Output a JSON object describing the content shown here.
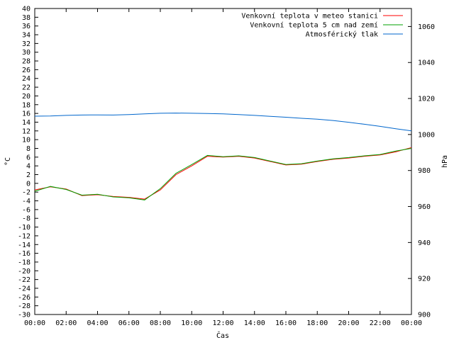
{
  "chart_data": {
    "type": "line",
    "xlabel": "Čas",
    "ylabel_left": "°C",
    "ylabel_right": "hPa",
    "x_ticks": [
      "00:00",
      "02:00",
      "04:00",
      "06:00",
      "08:00",
      "10:00",
      "12:00",
      "14:00",
      "16:00",
      "18:00",
      "20:00",
      "22:00",
      "00:00"
    ],
    "x_hours": [
      0,
      1,
      2,
      3,
      4,
      5,
      6,
      7,
      8,
      9,
      10,
      11,
      12,
      13,
      14,
      15,
      16,
      17,
      18,
      19,
      20,
      21,
      22,
      23,
      24
    ],
    "ylim_left": [
      -30,
      40
    ],
    "y_ticks_left": [
      -30,
      -28,
      -26,
      -24,
      -22,
      -20,
      -18,
      -16,
      -14,
      -12,
      -10,
      -8,
      -6,
      -4,
      -2,
      0,
      2,
      4,
      6,
      8,
      10,
      12,
      14,
      16,
      18,
      20,
      22,
      24,
      26,
      28,
      30,
      32,
      34,
      36,
      38,
      40
    ],
    "ylim_right": [
      900,
      1070
    ],
    "y_ticks_right": [
      900,
      920,
      940,
      960,
      980,
      1000,
      1020,
      1040,
      1060
    ],
    "grid": false,
    "legend_position": "top-right",
    "series": [
      {
        "name": "Venkovní teplota v meteo stanici",
        "color": "#ff0000",
        "axis": "left",
        "values": [
          -1.5,
          -0.8,
          -1.3,
          -2.8,
          -2.6,
          -3.0,
          -3.2,
          -3.6,
          -1.5,
          2.0,
          4.0,
          6.2,
          6.0,
          6.2,
          5.8,
          5.0,
          4.2,
          4.4,
          5.0,
          5.5,
          5.8,
          6.2,
          6.5,
          7.2,
          8.2
        ],
        "axis_side": "left"
      },
      {
        "name": "Venkovní teplota 5 cm nad zemí",
        "color": "#00a000",
        "axis": "left",
        "values": [
          -1.8,
          -0.7,
          -1.4,
          -2.7,
          -2.5,
          -3.1,
          -3.3,
          -3.8,
          -1.2,
          2.3,
          4.3,
          6.4,
          6.1,
          6.3,
          5.9,
          5.1,
          4.3,
          4.5,
          5.1,
          5.6,
          5.9,
          6.3,
          6.6,
          7.4,
          8.0
        ]
      },
      {
        "name": "Atmosférický tlak",
        "color": "#0066cc",
        "axis": "right",
        "values": [
          1010.2,
          1010.3,
          1010.6,
          1010.8,
          1010.9,
          1010.8,
          1011.1,
          1011.5,
          1011.8,
          1011.9,
          1011.8,
          1011.7,
          1011.5,
          1011.1,
          1010.6,
          1010.1,
          1009.6,
          1009.0,
          1008.5,
          1007.8,
          1006.8,
          1005.7,
          1004.5,
          1003.2,
          1002.0
        ]
      }
    ]
  }
}
